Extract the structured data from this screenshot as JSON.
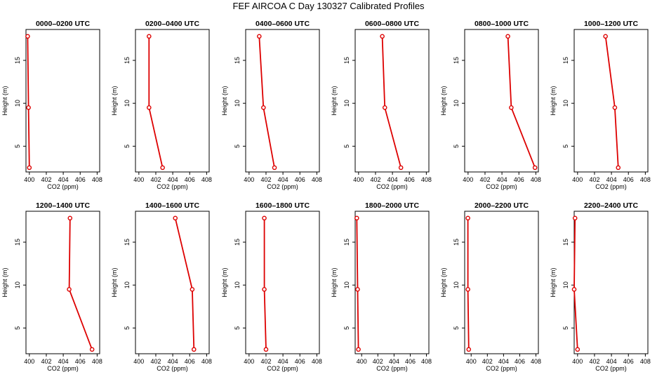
{
  "title": "FEF AIRCOA C  Day 130327  Calibrated Profiles",
  "chart_data": [
    {
      "type": "line",
      "title": "0000–0200 UTC",
      "xlabel": "CO2 (ppm)",
      "ylabel": "Height (m)",
      "xlim": [
        399.6,
        408.3
      ],
      "ylim": [
        2.0,
        18.6
      ],
      "xticks": [
        400,
        402,
        404,
        406,
        408
      ],
      "yticks": [
        5,
        10,
        15
      ],
      "heights": [
        17.8,
        9.5,
        2.5
      ],
      "co2": [
        399.8,
        399.9,
        400.0
      ]
    },
    {
      "type": "line",
      "title": "0200–0400 UTC",
      "xlabel": "CO2 (ppm)",
      "ylabel": "Height (m)",
      "xlim": [
        399.6,
        408.3
      ],
      "ylim": [
        2.0,
        18.6
      ],
      "xticks": [
        400,
        402,
        404,
        406,
        408
      ],
      "yticks": [
        5,
        10,
        15
      ],
      "heights": [
        17.8,
        9.5,
        2.5
      ],
      "co2": [
        401.2,
        401.2,
        402.8
      ]
    },
    {
      "type": "line",
      "title": "0400–0600 UTC",
      "xlabel": "CO2 (ppm)",
      "ylabel": "Height (m)",
      "xlim": [
        399.6,
        408.3
      ],
      "ylim": [
        2.0,
        18.6
      ],
      "xticks": [
        400,
        402,
        404,
        406,
        408
      ],
      "yticks": [
        5,
        10,
        15
      ],
      "heights": [
        17.8,
        9.5,
        2.5
      ],
      "co2": [
        401.2,
        401.7,
        403.0
      ]
    },
    {
      "type": "line",
      "title": "0600–0800 UTC",
      "xlabel": "CO2 (ppm)",
      "ylabel": "Height (m)",
      "xlim": [
        399.6,
        408.3
      ],
      "ylim": [
        2.0,
        18.6
      ],
      "xticks": [
        400,
        402,
        404,
        406,
        408
      ],
      "yticks": [
        5,
        10,
        15
      ],
      "heights": [
        17.8,
        9.5,
        2.5
      ],
      "co2": [
        402.8,
        403.1,
        405.0
      ]
    },
    {
      "type": "line",
      "title": "0800–1000 UTC",
      "xlabel": "CO2 (ppm)",
      "ylabel": "Height (m)",
      "xlim": [
        399.6,
        408.3
      ],
      "ylim": [
        2.0,
        18.6
      ],
      "xticks": [
        400,
        402,
        404,
        406,
        408
      ],
      "yticks": [
        5,
        10,
        15
      ],
      "heights": [
        17.8,
        9.5,
        2.5
      ],
      "co2": [
        404.7,
        405.1,
        407.9
      ]
    },
    {
      "type": "line",
      "title": "1000–1200 UTC",
      "xlabel": "CO2 (ppm)",
      "ylabel": "Height (m)",
      "xlim": [
        399.6,
        408.3
      ],
      "ylim": [
        2.0,
        18.6
      ],
      "xticks": [
        400,
        402,
        404,
        406,
        408
      ],
      "yticks": [
        5,
        10,
        15
      ],
      "heights": [
        17.8,
        9.5,
        2.5
      ],
      "co2": [
        403.3,
        404.4,
        404.8
      ]
    },
    {
      "type": "line",
      "title": "1200–1400 UTC",
      "xlabel": "CO2 (ppm)",
      "ylabel": "Height (m)",
      "xlim": [
        399.6,
        408.3
      ],
      "ylim": [
        2.0,
        18.6
      ],
      "xticks": [
        400,
        402,
        404,
        406,
        408
      ],
      "yticks": [
        5,
        10,
        15
      ],
      "heights": [
        17.8,
        9.5,
        2.5
      ],
      "co2": [
        404.8,
        404.7,
        407.4
      ]
    },
    {
      "type": "line",
      "title": "1400–1600 UTC",
      "xlabel": "CO2 (ppm)",
      "ylabel": "Height (m)",
      "xlim": [
        399.6,
        408.3
      ],
      "ylim": [
        2.0,
        18.6
      ],
      "xticks": [
        400,
        402,
        404,
        406,
        408
      ],
      "yticks": [
        5,
        10,
        15
      ],
      "heights": [
        17.8,
        9.5,
        2.5
      ],
      "co2": [
        404.3,
        406.3,
        406.5
      ]
    },
    {
      "type": "line",
      "title": "1600–1800 UTC",
      "xlabel": "CO2 (ppm)",
      "ylabel": "Height (m)",
      "xlim": [
        399.6,
        408.3
      ],
      "ylim": [
        2.0,
        18.6
      ],
      "xticks": [
        400,
        402,
        404,
        406,
        408
      ],
      "yticks": [
        5,
        10,
        15
      ],
      "heights": [
        17.8,
        9.5,
        2.5
      ],
      "co2": [
        401.8,
        401.8,
        402.0
      ]
    },
    {
      "type": "line",
      "title": "1800–2000 UTC",
      "xlabel": "CO2 (ppm)",
      "ylabel": "Height (m)",
      "xlim": [
        399.2,
        408.3
      ],
      "ylim": [
        2.0,
        18.6
      ],
      "xticks": [
        400,
        402,
        404,
        406,
        408
      ],
      "yticks": [
        5,
        10,
        15
      ],
      "heights": [
        17.8,
        9.5,
        2.5
      ],
      "co2": [
        399.4,
        399.5,
        399.6
      ]
    },
    {
      "type": "line",
      "title": "2000–2200 UTC",
      "xlabel": "CO2 (ppm)",
      "ylabel": "Height (m)",
      "xlim": [
        399.2,
        408.3
      ],
      "ylim": [
        2.0,
        18.6
      ],
      "xticks": [
        400,
        402,
        404,
        406,
        408
      ],
      "yticks": [
        5,
        10,
        15
      ],
      "heights": [
        17.8,
        9.5,
        2.5
      ],
      "co2": [
        399.6,
        399.6,
        399.7
      ]
    },
    {
      "type": "line",
      "title": "2200–2400 UTC",
      "xlabel": "CO2 (ppm)",
      "ylabel": "Height (m)",
      "xlim": [
        399.6,
        408.3
      ],
      "ylim": [
        2.0,
        18.6
      ],
      "xticks": [
        400,
        402,
        404,
        406,
        408
      ],
      "yticks": [
        5,
        10,
        15
      ],
      "heights": [
        17.8,
        9.5,
        2.5
      ],
      "co2": [
        399.7,
        399.6,
        400.0
      ]
    }
  ]
}
